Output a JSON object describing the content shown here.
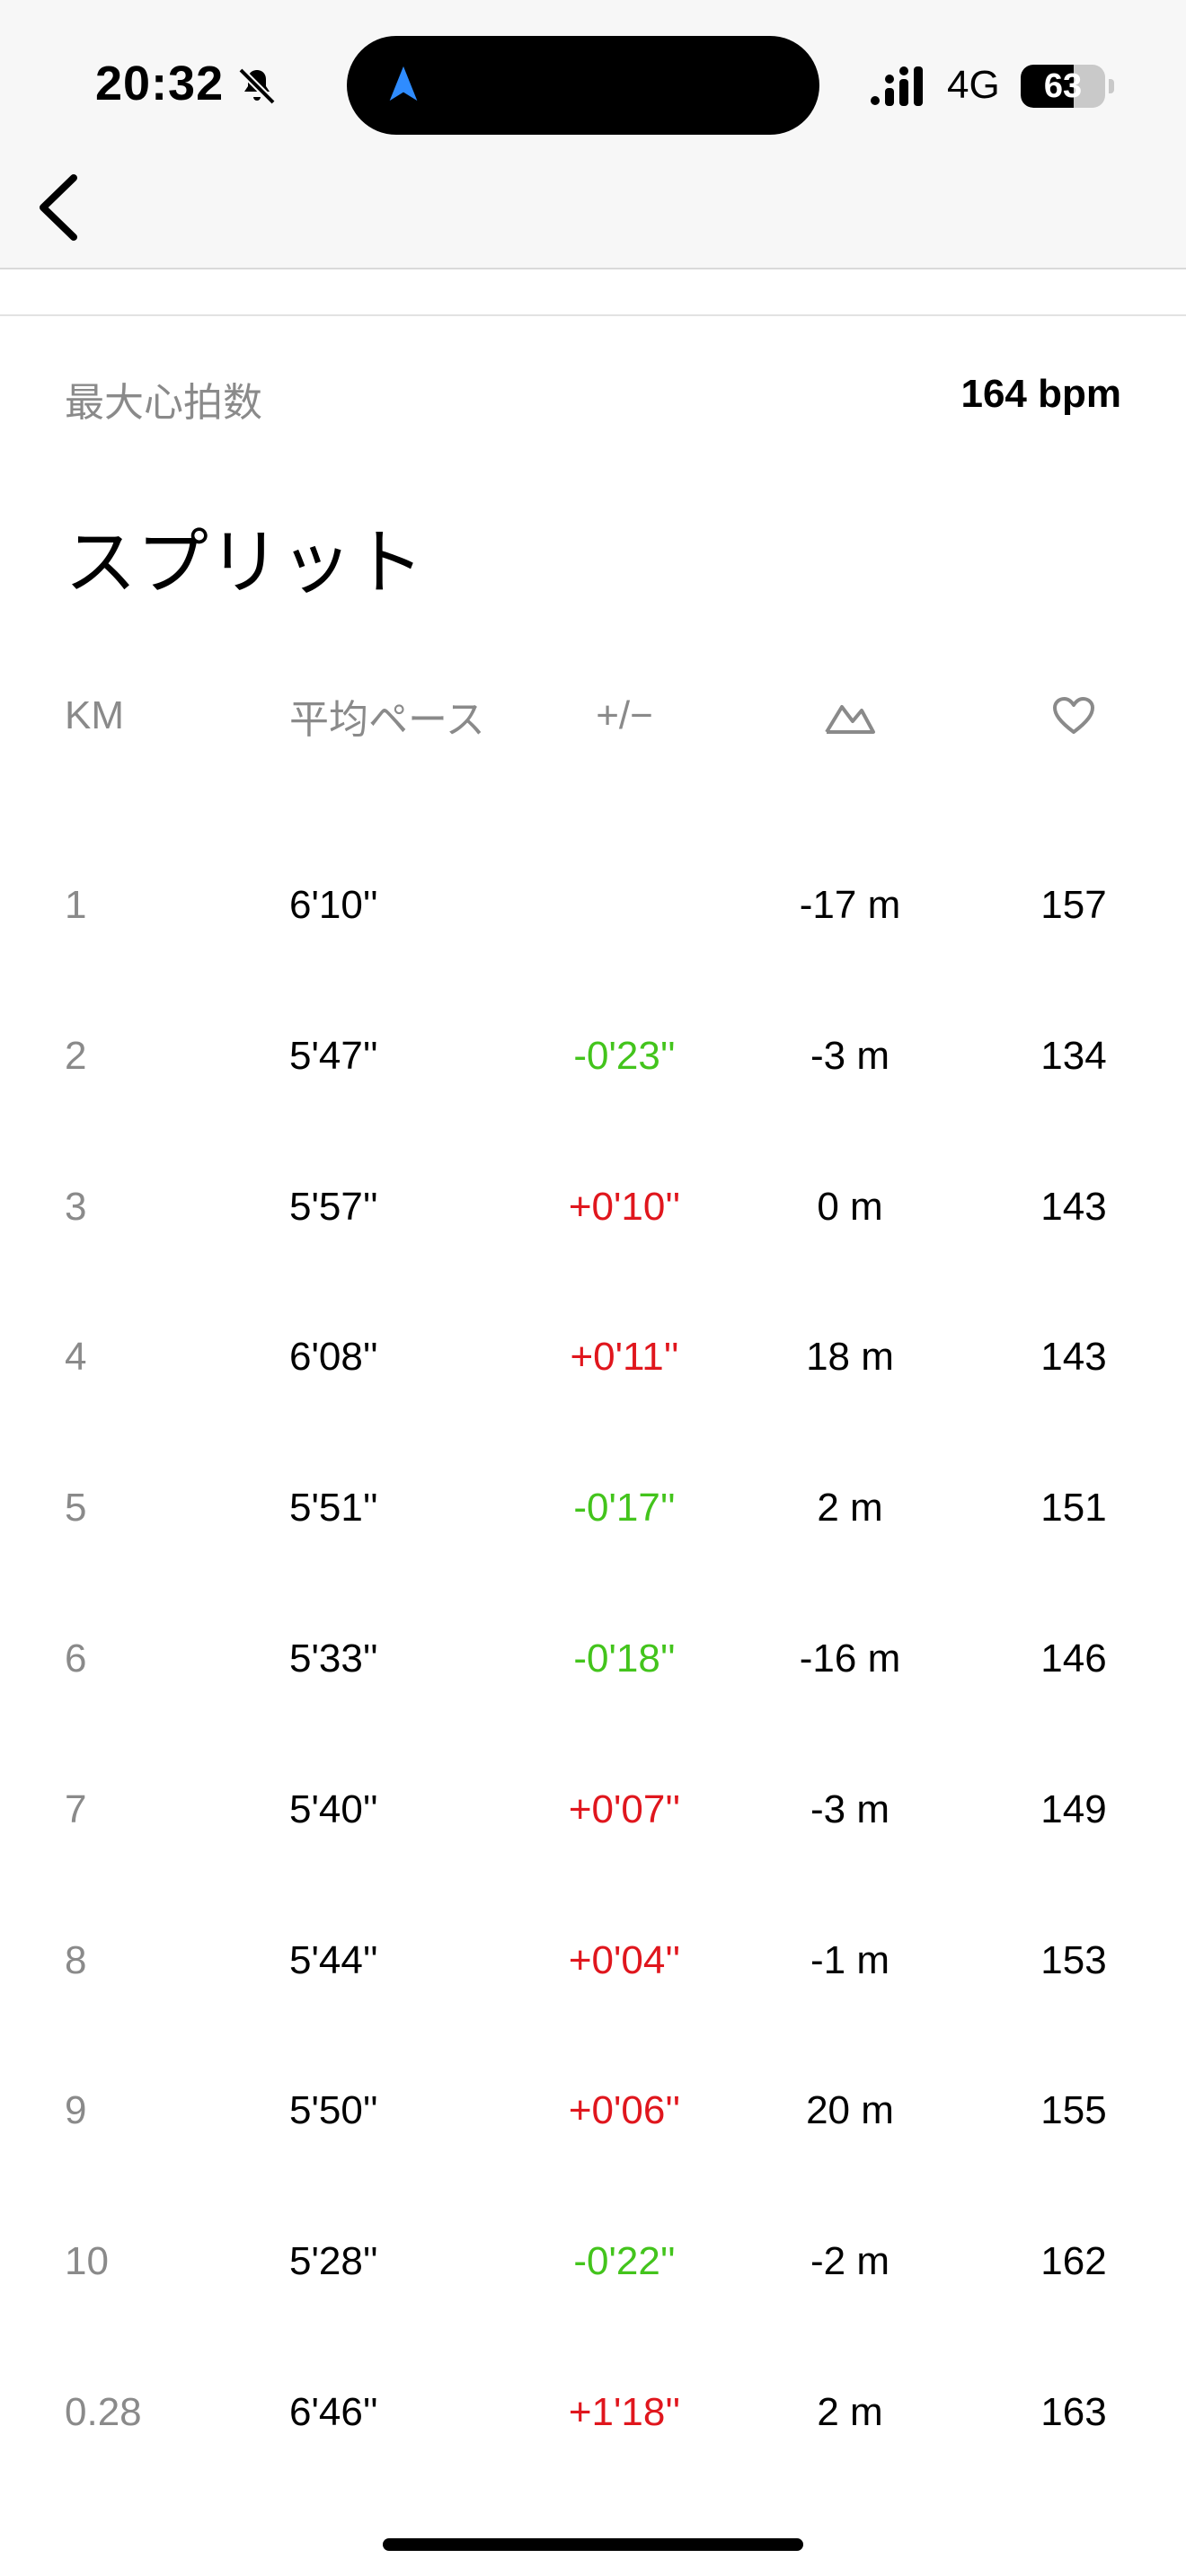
{
  "status_bar": {
    "time": "20:32",
    "network": "4G",
    "battery_percent": 63,
    "battery_label": "63",
    "silent_icon": "bell-slash-icon",
    "location_icon": "navigation-arrow-icon",
    "signal_icon": "cellular-signal-icon"
  },
  "nav": {
    "back_icon": "chevron-left-icon"
  },
  "summary": {
    "max_hr_label": "最大心拍数",
    "max_hr_value": "164 bpm"
  },
  "section": {
    "title": "スプリット"
  },
  "table": {
    "headers": {
      "km": "KM",
      "pace": "平均ペース",
      "diff": "+/−",
      "elevation_icon": "elevation-mountain-icon",
      "hr_icon": "heart-icon"
    },
    "rows": [
      {
        "km": "1",
        "pace": "6'10''",
        "diff": "",
        "diff_type": "none",
        "elev": "-17 m",
        "hr": "157"
      },
      {
        "km": "2",
        "pace": "5'47''",
        "diff": "-0'23''",
        "diff_type": "neg",
        "elev": "-3 m",
        "hr": "134"
      },
      {
        "km": "3",
        "pace": "5'57''",
        "diff": "+0'10''",
        "diff_type": "pos",
        "elev": "0 m",
        "hr": "143"
      },
      {
        "km": "4",
        "pace": "6'08''",
        "diff": "+0'11''",
        "diff_type": "pos",
        "elev": "18 m",
        "hr": "143"
      },
      {
        "km": "5",
        "pace": "5'51''",
        "diff": "-0'17''",
        "diff_type": "neg",
        "elev": "2 m",
        "hr": "151"
      },
      {
        "km": "6",
        "pace": "5'33''",
        "diff": "-0'18''",
        "diff_type": "neg",
        "elev": "-16 m",
        "hr": "146"
      },
      {
        "km": "7",
        "pace": "5'40''",
        "diff": "+0'07''",
        "diff_type": "pos",
        "elev": "-3 m",
        "hr": "149"
      },
      {
        "km": "8",
        "pace": "5'44''",
        "diff": "+0'04''",
        "diff_type": "pos",
        "elev": "-1 m",
        "hr": "153"
      },
      {
        "km": "9",
        "pace": "5'50''",
        "diff": "+0'06''",
        "diff_type": "pos",
        "elev": "20 m",
        "hr": "155"
      },
      {
        "km": "10",
        "pace": "5'28''",
        "diff": "-0'22''",
        "diff_type": "neg",
        "elev": "-2 m",
        "hr": "162"
      },
      {
        "km": "0.28",
        "pace": "6'46''",
        "diff": "+1'18''",
        "diff_type": "pos",
        "elev": "2 m",
        "hr": "163"
      }
    ]
  },
  "colors": {
    "positive": "#e0161d",
    "negative": "#43c41c",
    "muted": "#8a8a8a"
  }
}
